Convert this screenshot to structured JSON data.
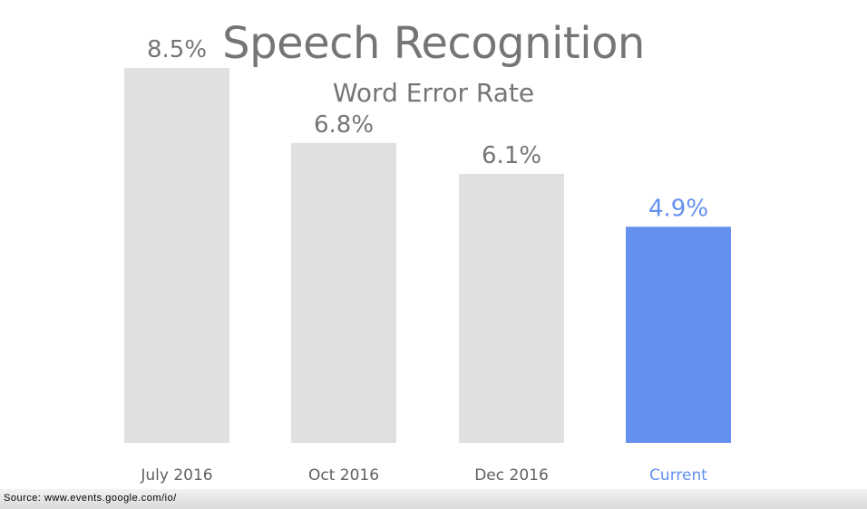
{
  "chart_data": {
    "type": "bar",
    "title": "Speech Recognition",
    "subtitle": "Word Error Rate",
    "xlabel": "",
    "ylabel": "",
    "categories": [
      "July 2016",
      "Oct 2016",
      "Dec 2016",
      "Current"
    ],
    "values": [
      8.5,
      6.8,
      6.1,
      4.9
    ],
    "value_labels": [
      "8.5%",
      "6.8%",
      "6.1%",
      "4.9%"
    ],
    "ylim": [
      0,
      10
    ],
    "grid": false,
    "legend": "none"
  },
  "colors": {
    "bar_default": "#e0e0e0",
    "bar_highlight": "#6490ef",
    "text_gray": "#757575",
    "text_highlight": "#6490ef"
  },
  "highlight_category": "Current",
  "source": {
    "text": "Source: www.events.google.com/io/"
  }
}
